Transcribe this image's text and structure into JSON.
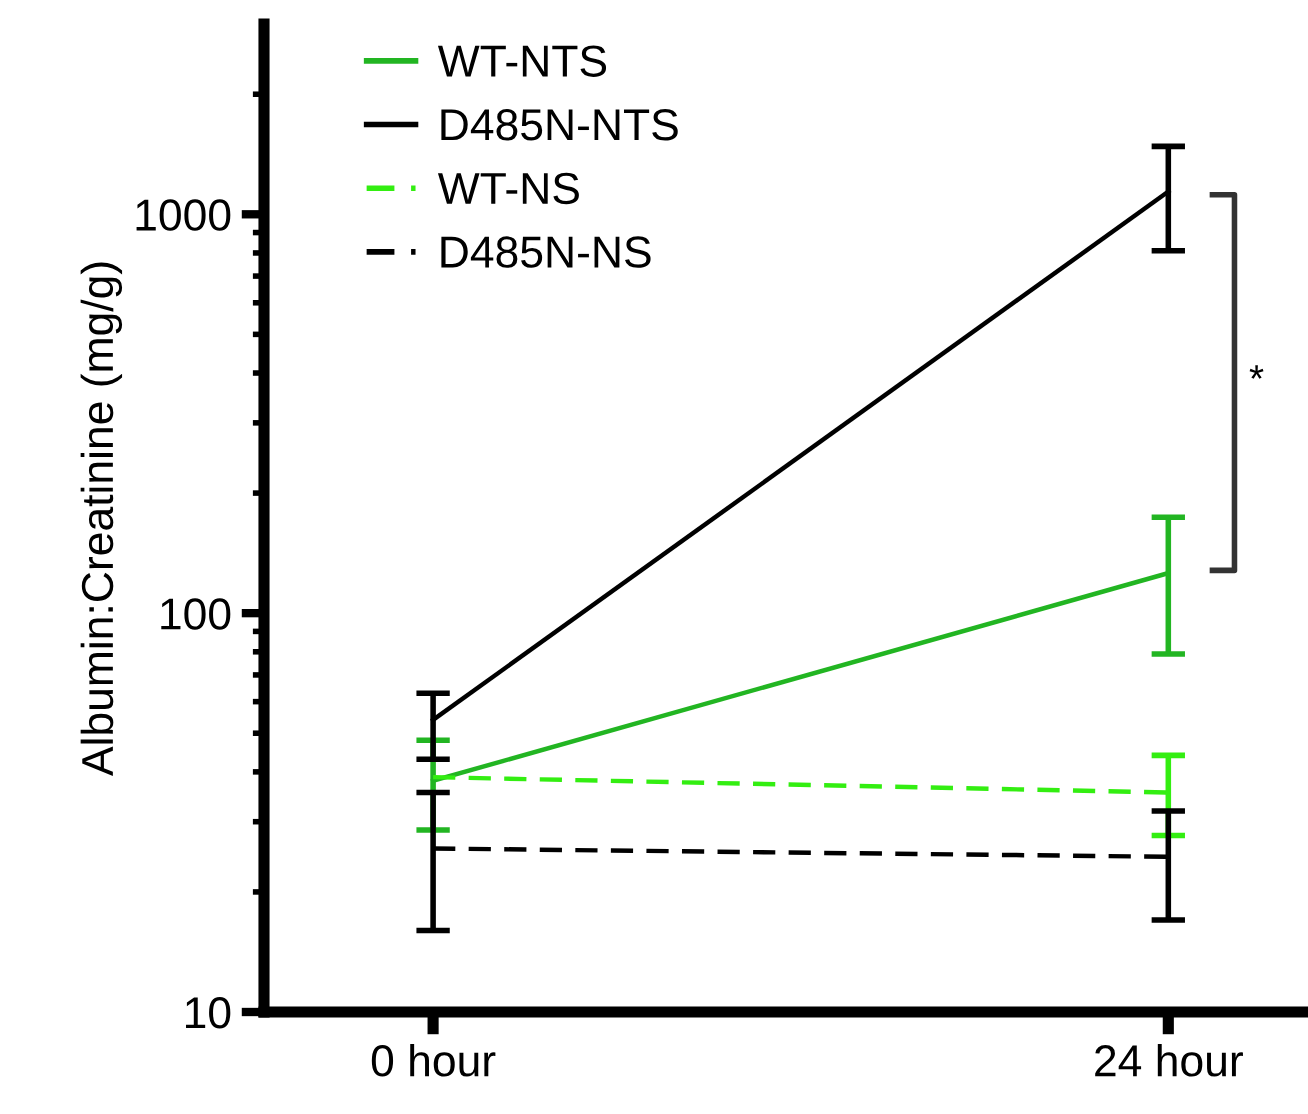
{
  "chart_data": {
    "type": "line",
    "ylabel": "Albumin:Creatinine (mg/g)",
    "categories": [
      "0 hour",
      "24 hour"
    ],
    "series": [
      {
        "name": "WT-NTS",
        "color": "#22b522",
        "line_style": "solid",
        "values": [
          38,
          126
        ],
        "errors": [
          [
            28.6,
            48
          ],
          [
            79,
            174
          ]
        ]
      },
      {
        "name": "D485N-NTS",
        "color": "#000000",
        "line_style": "solid",
        "values": [
          54,
          1140
        ],
        "errors": [
          [
            43,
            63
          ],
          [
            810,
            1480
          ]
        ]
      },
      {
        "name": "WT-NS",
        "color": "#33ee11",
        "line_style": "dashed",
        "values": [
          38.8,
          35.5
        ],
        "errors": [
          null,
          [
            27.7,
            44
          ]
        ]
      },
      {
        "name": "D485N-NS",
        "color": "#000000",
        "line_style": "dashed",
        "values": [
          25.7,
          24.5
        ],
        "errors": [
          [
            16,
            35.5
          ],
          [
            17,
            31.9
          ]
        ]
      }
    ],
    "log": "y",
    "ylim": [
      10,
      3000
    ],
    "yticks": [
      10,
      100,
      1000
    ],
    "grid": false,
    "legend": "top left",
    "marker": "none",
    "annotations": [
      "*"
    ]
  }
}
